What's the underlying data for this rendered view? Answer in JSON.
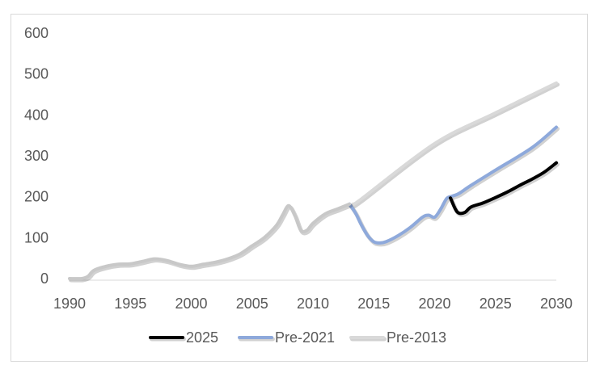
{
  "chart_data": {
    "type": "line",
    "title": "",
    "xlabel": "",
    "ylabel": "",
    "xlim": [
      1990,
      2030
    ],
    "ylim": [
      0,
      600
    ],
    "x_ticks": [
      "1990",
      "1995",
      "2000",
      "2005",
      "2010",
      "2015",
      "2020",
      "2025",
      "2030"
    ],
    "y_ticks": [
      "0",
      "100",
      "200",
      "300",
      "400",
      "500",
      "600"
    ],
    "grid": false,
    "legend_position": "bottom",
    "series": [
      {
        "name": "Pre-2013",
        "color": "#d9d9d9",
        "points": [
          [
            2013.3,
            182
          ],
          [
            2014,
            195
          ],
          [
            2020,
            330
          ],
          [
            2025,
            405
          ],
          [
            2030,
            478
          ]
        ]
      },
      {
        "name": "Pre-2021",
        "color": "#8ea9db",
        "points": [
          [
            2013,
            182
          ],
          [
            2013.5,
            160
          ],
          [
            2014,
            130
          ],
          [
            2014.5,
            105
          ],
          [
            2015,
            90
          ],
          [
            2015.5,
            87
          ],
          [
            2016,
            90
          ],
          [
            2017,
            105
          ],
          [
            2018,
            125
          ],
          [
            2019,
            150
          ],
          [
            2019.5,
            155
          ],
          [
            2020,
            150
          ],
          [
            2020.5,
            170
          ],
          [
            2021,
            196
          ],
          [
            2021.5,
            202
          ],
          [
            2022,
            208
          ],
          [
            2023,
            228
          ],
          [
            2025,
            265
          ],
          [
            2028,
            320
          ],
          [
            2030,
            370
          ]
        ]
      },
      {
        "name": "2025",
        "color": "#000000",
        "points": [
          [
            2021.3,
            197
          ],
          [
            2021.7,
            170
          ],
          [
            2022,
            160
          ],
          [
            2022.5,
            162
          ],
          [
            2023,
            175
          ],
          [
            2024,
            185
          ],
          [
            2025,
            198
          ],
          [
            2026,
            212
          ],
          [
            2027,
            228
          ],
          [
            2028,
            243
          ],
          [
            2029,
            260
          ],
          [
            2030,
            283
          ]
        ]
      },
      {
        "name": "History",
        "color": "#c8c8c8",
        "in_legend": false,
        "points": [
          [
            1990,
            0
          ],
          [
            1991,
            0
          ],
          [
            1991.5,
            5
          ],
          [
            1992,
            20
          ],
          [
            1993,
            30
          ],
          [
            1994,
            35
          ],
          [
            1995,
            36
          ],
          [
            1996,
            42
          ],
          [
            1997,
            48
          ],
          [
            1998,
            44
          ],
          [
            1999,
            35
          ],
          [
            2000,
            30
          ],
          [
            2001,
            35
          ],
          [
            2002,
            40
          ],
          [
            2003,
            48
          ],
          [
            2004,
            60
          ],
          [
            2005,
            80
          ],
          [
            2006,
            100
          ],
          [
            2007,
            130
          ],
          [
            2007.5,
            155
          ],
          [
            2008,
            178
          ],
          [
            2008.5,
            155
          ],
          [
            2009,
            118
          ],
          [
            2009.5,
            118
          ],
          [
            2010,
            135
          ],
          [
            2011,
            158
          ],
          [
            2012,
            170
          ],
          [
            2013,
            182
          ]
        ]
      }
    ],
    "legend": [
      {
        "label": "2025",
        "color": "#000000"
      },
      {
        "label": "Pre-2021",
        "color": "#8ea9db"
      },
      {
        "label": "Pre-2013",
        "color": "#d9d9d9"
      }
    ]
  }
}
